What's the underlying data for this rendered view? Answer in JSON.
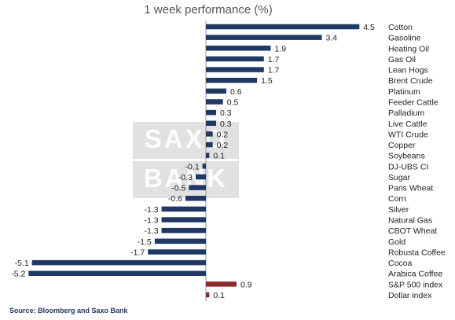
{
  "chart_data": {
    "type": "bar",
    "orientation": "horizontal",
    "title": "1 week performance (%)",
    "source": "Source: Bloomberg and Saxo Bank",
    "watermark": [
      "SAXO",
      "BANK"
    ],
    "colors": {
      "commodity": "#1f3864",
      "benchmark": "#8b2a2a"
    },
    "xlim": [
      -5.2,
      4.5
    ],
    "categories": [
      "Cotton",
      "Gasoline",
      "Heating Oil",
      "Gas Oil",
      "Lean Hogs",
      "Brent Crude",
      "Platinum",
      "Feeder Cattle",
      "Palladium",
      "Live Cattle",
      "WTI Crude",
      "Copper",
      "Soybeans",
      "DJ-UBS CI",
      "Sugar",
      "Paris Wheat",
      "Corn",
      "Silver",
      "Natural Gas",
      "CBOT Wheat",
      "Gold",
      "Robusta Coffee",
      "Cocoa",
      "Arabica Coffee",
      "S&P 500 index",
      "Dollar index"
    ],
    "values": [
      4.5,
      3.4,
      1.9,
      1.7,
      1.7,
      1.5,
      0.6,
      0.5,
      0.3,
      0.3,
      0.2,
      0.2,
      0.1,
      -0.1,
      -0.3,
      -0.5,
      -0.6,
      -1.3,
      -1.3,
      -1.3,
      -1.5,
      -1.7,
      -5.1,
      -5.2,
      0.9,
      0.1
    ],
    "value_labels": [
      "4.5",
      "3.4",
      "1.9",
      "1.7",
      "1.7",
      "1.5",
      "0.6",
      "0.5",
      "0.3",
      "0.3",
      "0.2",
      "0.2",
      "0.1",
      "-0.1",
      "-0.3",
      "-0.5",
      "-0.6",
      "-1.3",
      "-1.3",
      "-1.3",
      "-1.5",
      "-1.7",
      "-5.1",
      "-5.2",
      "0.9",
      "0.1"
    ],
    "highlight": [
      "S&P 500 index",
      "Dollar index"
    ]
  }
}
